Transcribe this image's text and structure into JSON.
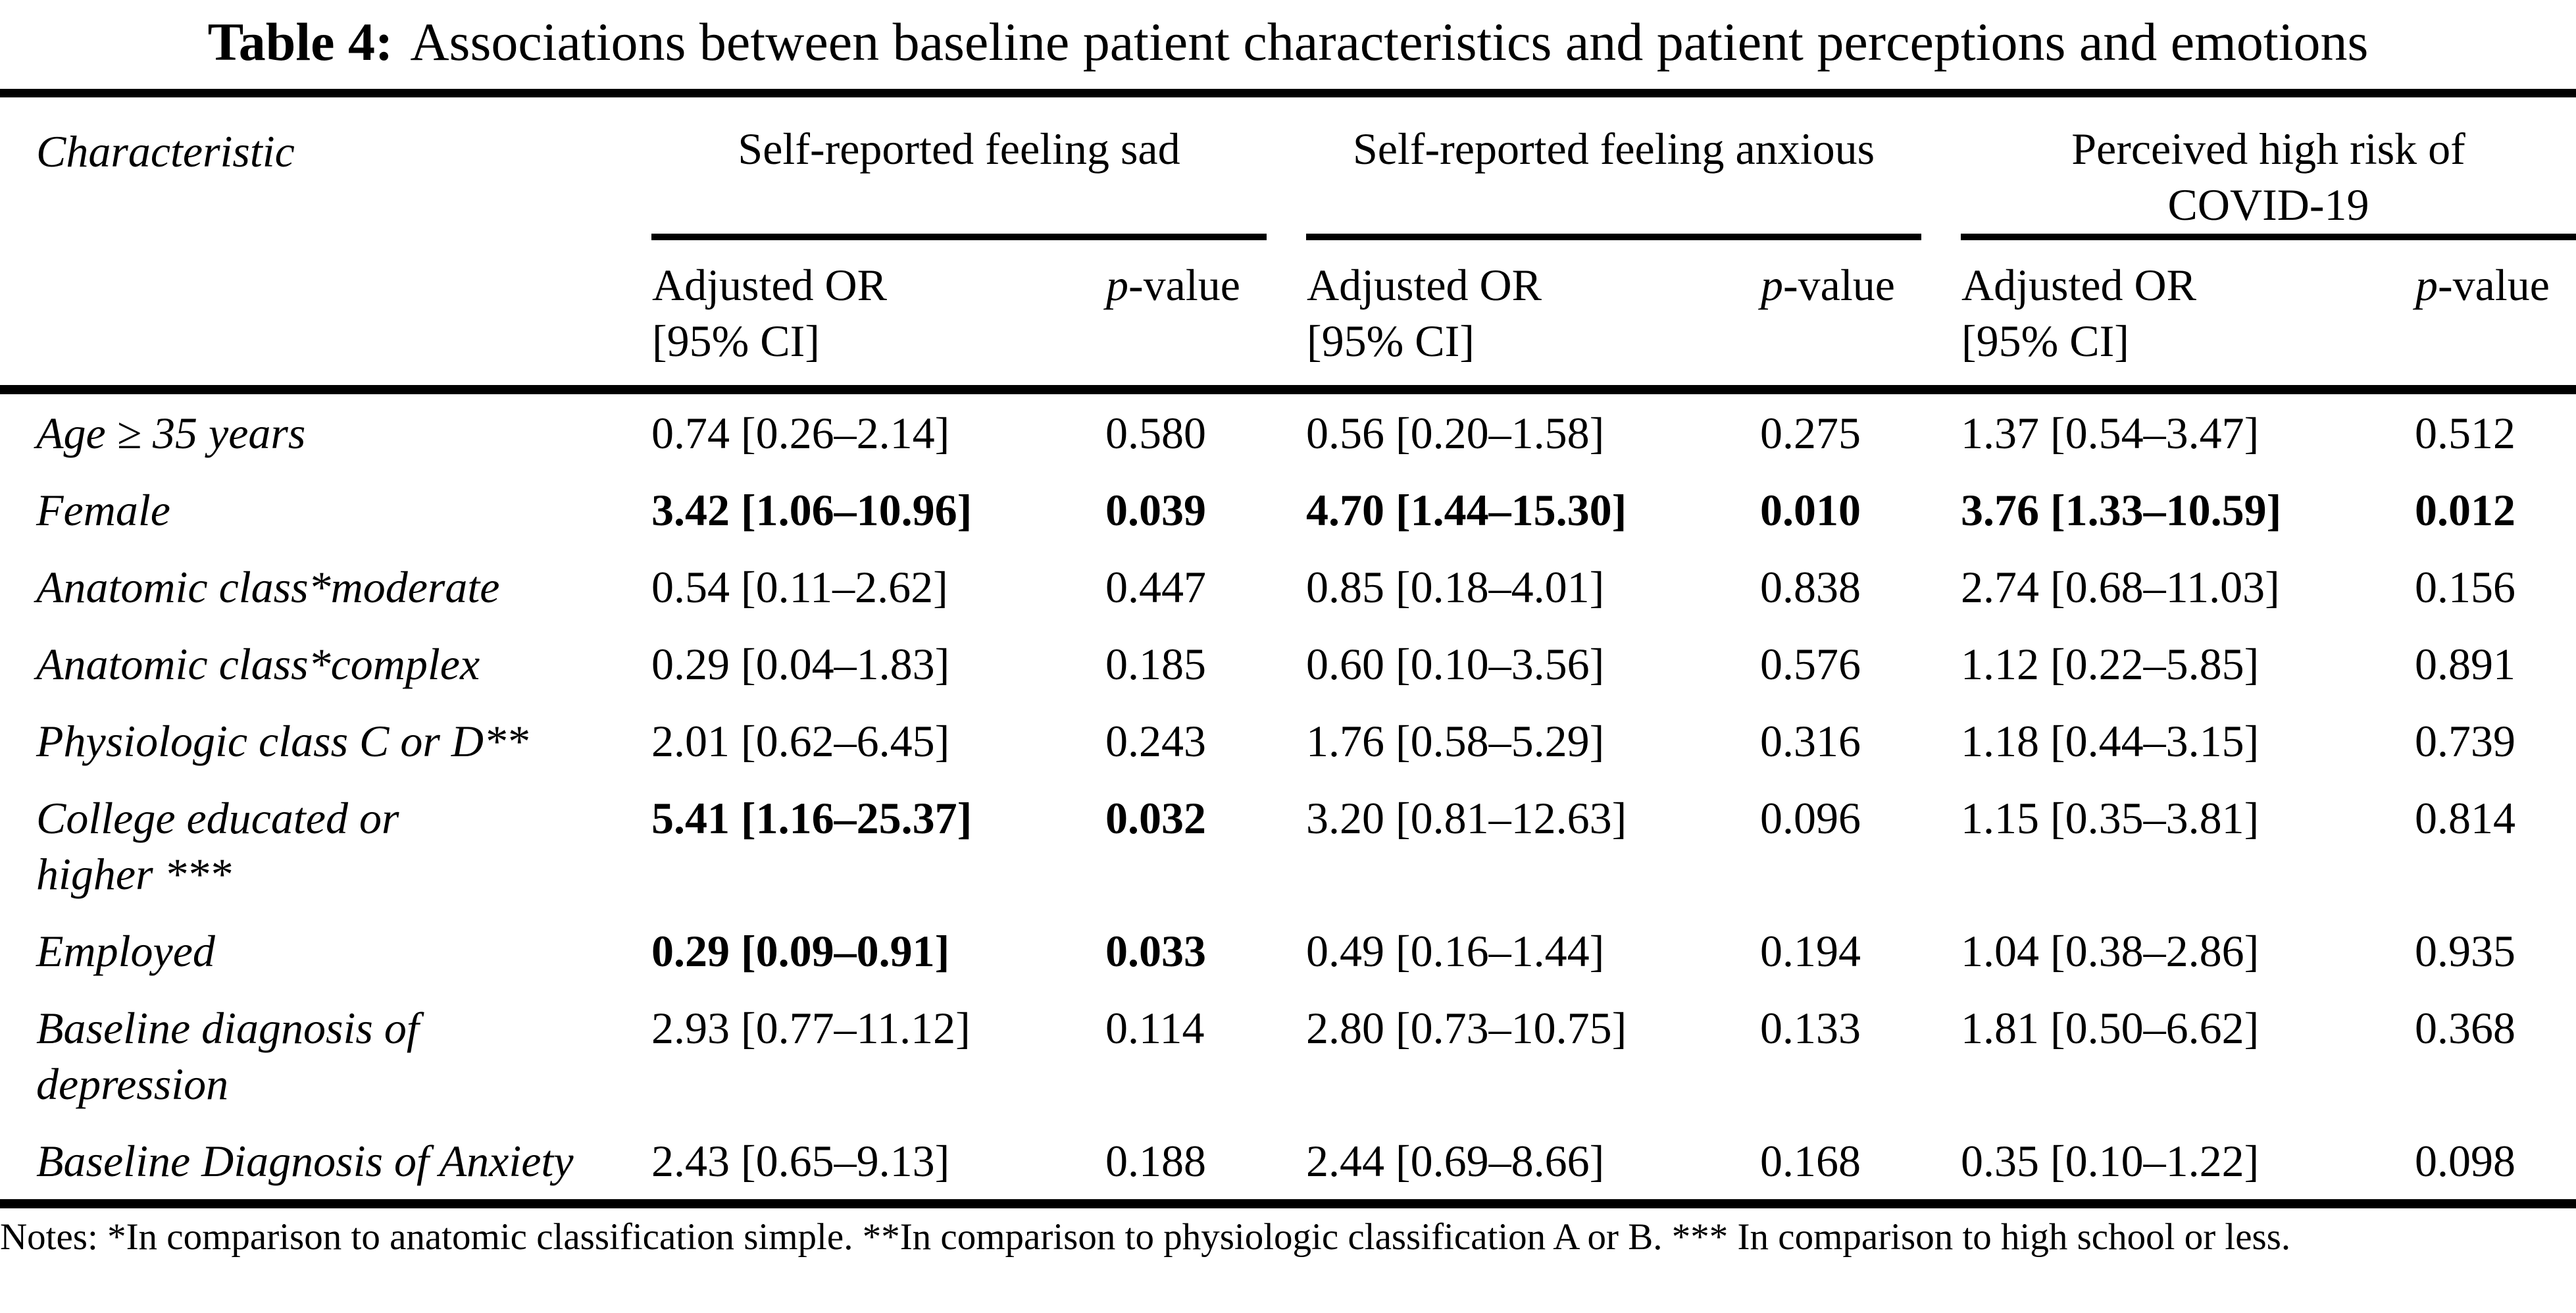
{
  "caption": {
    "label": "Table 4:",
    "text": "Associations between baseline patient characteristics and patient perceptions and emotions"
  },
  "header": {
    "characteristic": "Characteristic",
    "groups": [
      {
        "line1": "Self-reported feeling sad"
      },
      {
        "line1": "Self-reported feeling anxious"
      },
      {
        "line1": "Perceived high risk of",
        "line2": "COVID-19"
      }
    ],
    "subheader": {
      "or_line1": "Adjusted OR",
      "or_line2": "[95% CI]",
      "p_italic": "p",
      "p_rest": "-value"
    }
  },
  "rows": [
    {
      "label": {
        "line1": "Age ≥ 35 years"
      },
      "cells": [
        {
          "or": "0.74 [0.26–2.14]",
          "p": "0.580"
        },
        {
          "or": "0.56 [0.20–1.58]",
          "p": "0.275"
        },
        {
          "or": "1.37 [0.54–3.47]",
          "p": "0.512"
        }
      ]
    },
    {
      "label": {
        "line1": "Female"
      },
      "cells": [
        {
          "or": "3.42 [1.06–10.96]",
          "p": "0.039"
        },
        {
          "or": "4.70 [1.44–15.30]",
          "p": "0.010"
        },
        {
          "or": "3.76 [1.33–10.59]",
          "p": "0.012"
        }
      ]
    },
    {
      "label": {
        "line1": "Anatomic class*moderate"
      },
      "cells": [
        {
          "or": "0.54 [0.11–2.62]",
          "p": "0.447"
        },
        {
          "or": "0.85 [0.18–4.01]",
          "p": "0.838"
        },
        {
          "or": "2.74 [0.68–11.03]",
          "p": "0.156"
        }
      ]
    },
    {
      "label": {
        "line1": "Anatomic class*complex"
      },
      "cells": [
        {
          "or": "0.29 [0.04–1.83]",
          "p": "0.185"
        },
        {
          "or": "0.60 [0.10–3.56]",
          "p": "0.576"
        },
        {
          "or": "1.12 [0.22–5.85]",
          "p": "0.891"
        }
      ]
    },
    {
      "label": {
        "line1": "Physiologic class C or D**"
      },
      "cells": [
        {
          "or": "2.01 [0.62–6.45]",
          "p": "0.243"
        },
        {
          "or": "1.76 [0.58–5.29]",
          "p": "0.316"
        },
        {
          "or": "1.18 [0.44–3.15]",
          "p": "0.739"
        }
      ]
    },
    {
      "label": {
        "line1": "College educated or",
        "line2": "higher ***"
      },
      "cells": [
        {
          "or": "5.41 [1.16–25.37]",
          "p": "0.032"
        },
        {
          "or": "3.20 [0.81–12.63]",
          "p": "0.096"
        },
        {
          "or": "1.15 [0.35–3.81]",
          "p": "0.814"
        }
      ]
    },
    {
      "label": {
        "line1": "Employed"
      },
      "cells": [
        {
          "or": "0.29 [0.09–0.91]",
          "p": "0.033"
        },
        {
          "or": "0.49 [0.16–1.44]",
          "p": "0.194"
        },
        {
          "or": "1.04 [0.38–2.86]",
          "p": "0.935"
        }
      ]
    },
    {
      "label": {
        "line1": "Baseline diagnosis of",
        "line2": "depression"
      },
      "cells": [
        {
          "or": "2.93 [0.77–11.12]",
          "p": "0.114"
        },
        {
          "or": "2.80 [0.73–10.75]",
          "p": "0.133"
        },
        {
          "or": "1.81 [0.50–6.62]",
          "p": "0.368"
        }
      ]
    },
    {
      "label": {
        "line1": "Baseline Diagnosis of Anxiety"
      },
      "cells": [
        {
          "or": "2.43 [0.65–9.13]",
          "p": "0.188"
        },
        {
          "or": "2.44 [0.69–8.66]",
          "p": "0.168"
        },
        {
          "or": "0.35 [0.10–1.22]",
          "p": "0.098"
        }
      ]
    }
  ],
  "notes": "Notes: *In comparison to anatomic classification simple. **In comparison to physiologic classification A or B. *** In comparison to high school or less."
}
